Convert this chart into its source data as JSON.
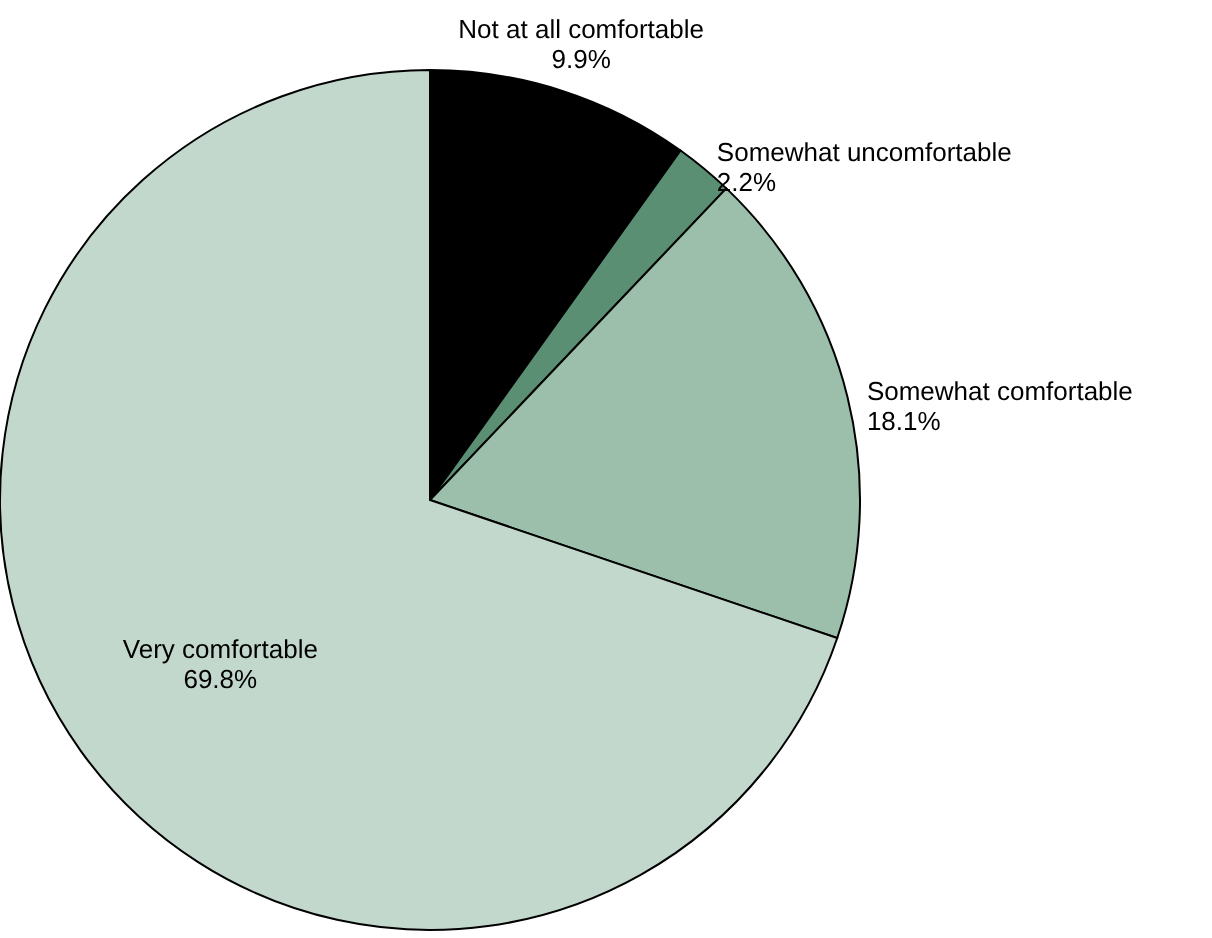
{
  "chart_data": {
    "type": "pie",
    "categories": [
      "Not at all comfortable",
      "Somewhat uncomfortable",
      "Somewhat comfortable",
      "Very comfortable"
    ],
    "values": [
      9.9,
      2.2,
      18.1,
      69.8
    ],
    "value_labels": [
      "9.9%",
      "2.2%",
      "18.1%",
      "69.8%"
    ],
    "colors": [
      "#000000",
      "#5a8f74",
      "#9bbfaa",
      "#c2d8cc"
    ]
  }
}
